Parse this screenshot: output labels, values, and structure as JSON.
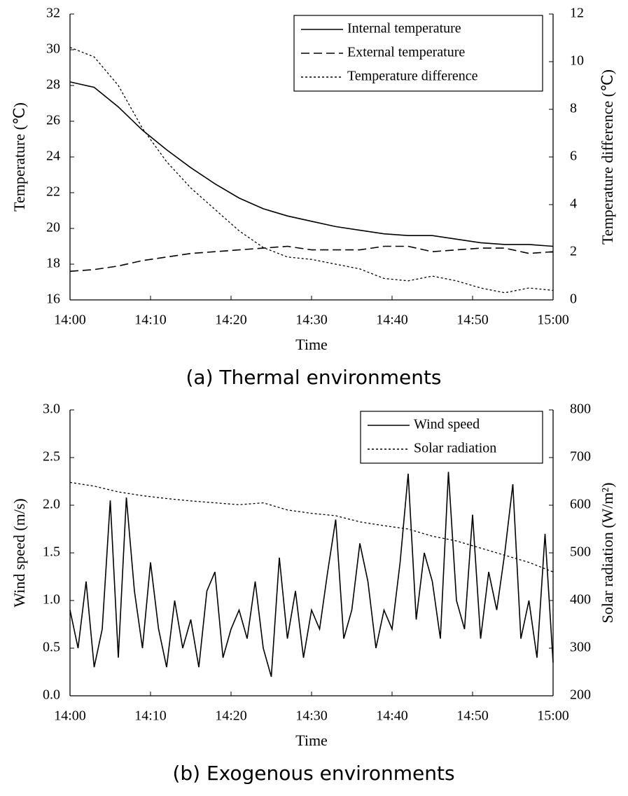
{
  "chart_data": [
    {
      "type": "line",
      "title": "(a) Thermal environments",
      "xlabel": "Time",
      "ylabel": "Temperature (℃)",
      "y2label": "Temperature difference (℃)",
      "x": [
        "14:00",
        "14:03",
        "14:06",
        "14:09",
        "14:12",
        "14:15",
        "14:18",
        "14:21",
        "14:24",
        "14:27",
        "14:30",
        "14:33",
        "14:36",
        "14:39",
        "14:42",
        "14:45",
        "14:48",
        "14:51",
        "14:54",
        "14:57",
        "15:00"
      ],
      "xlim": [
        "14:00",
        "15:00"
      ],
      "xticks": [
        "14:00",
        "14:10",
        "14:20",
        "14:30",
        "14:40",
        "14:50",
        "15:00"
      ],
      "ylim": [
        16,
        32
      ],
      "yticks": [
        16,
        18,
        20,
        22,
        24,
        26,
        28,
        30,
        32
      ],
      "y2lim": [
        0,
        12
      ],
      "y2ticks": [
        0,
        2,
        4,
        6,
        8,
        10,
        12
      ],
      "legend": "top-right",
      "series": [
        {
          "name": "Internal temperature",
          "color": "#000000",
          "dash": "solid",
          "values": [
            28.2,
            27.9,
            26.8,
            25.5,
            24.4,
            23.4,
            22.5,
            21.7,
            21.1,
            20.7,
            20.4,
            20.1,
            19.9,
            19.7,
            19.6,
            19.6,
            19.4,
            19.2,
            19.1,
            19.1,
            19.0
          ]
        },
        {
          "name": "External temperature",
          "color": "#000000",
          "dash": "dashed",
          "values": [
            17.6,
            17.7,
            17.9,
            18.2,
            18.4,
            18.6,
            18.7,
            18.8,
            18.9,
            19.0,
            18.8,
            18.8,
            18.8,
            19.0,
            19.0,
            18.7,
            18.8,
            18.9,
            18.9,
            18.6,
            18.7
          ]
        },
        {
          "name": "Temperature difference",
          "color": "#000000",
          "dash": "dotted",
          "axis": "y2",
          "values": [
            10.6,
            10.2,
            9.0,
            7.2,
            5.8,
            4.7,
            3.8,
            2.9,
            2.2,
            1.8,
            1.7,
            1.5,
            1.3,
            0.9,
            0.8,
            1.0,
            0.8,
            0.5,
            0.3,
            0.5,
            0.4
          ]
        }
      ]
    },
    {
      "type": "line",
      "title": "(b) Exogenous environments",
      "xlabel": "Time",
      "ylabel": "Wind speed (m/s)",
      "y2label": "Solar radiation (W/m²)",
      "xlim": [
        "14:00",
        "15:00"
      ],
      "xticks": [
        "14:00",
        "14:10",
        "14:20",
        "14:30",
        "14:40",
        "14:50",
        "15:00"
      ],
      "ylim": [
        0,
        3
      ],
      "yticks": [
        {
          "value": 0,
          "label": "0.0"
        },
        0.5,
        {
          "value": 1,
          "label": "1.0"
        },
        1.5,
        {
          "value": 2,
          "label": "2.0"
        },
        2.5,
        {
          "value": 3,
          "label": "3.0"
        }
      ],
      "y2lim": [
        200,
        800
      ],
      "y2ticks": [
        200,
        300,
        400,
        500,
        600,
        700,
        800
      ],
      "legend": "top-right",
      "series": [
        {
          "name": "Wind speed",
          "color": "#000000",
          "dash": "solid",
          "x": [
            "14:00",
            "14:01",
            "14:02",
            "14:03",
            "14:04",
            "14:05",
            "14:06",
            "14:07",
            "14:08",
            "14:09",
            "14:10",
            "14:11",
            "14:12",
            "14:13",
            "14:14",
            "14:15",
            "14:16",
            "14:17",
            "14:18",
            "14:19",
            "14:20",
            "14:21",
            "14:22",
            "14:23",
            "14:24",
            "14:25",
            "14:26",
            "14:27",
            "14:28",
            "14:29",
            "14:30",
            "14:31",
            "14:32",
            "14:33",
            "14:34",
            "14:35",
            "14:36",
            "14:37",
            "14:38",
            "14:39",
            "14:40",
            "14:41",
            "14:42",
            "14:43",
            "14:44",
            "14:45",
            "14:46",
            "14:47",
            "14:48",
            "14:49",
            "14:50",
            "14:51",
            "14:52",
            "14:53",
            "14:54",
            "14:55",
            "14:56",
            "14:57",
            "14:58",
            "14:59",
            "15:00"
          ],
          "values": [
            0.9,
            0.5,
            1.2,
            0.3,
            0.7,
            2.05,
            0.4,
            2.08,
            1.1,
            0.5,
            1.4,
            0.7,
            0.3,
            1.0,
            0.5,
            0.8,
            0.3,
            1.1,
            1.3,
            0.4,
            0.7,
            0.9,
            0.6,
            1.2,
            0.5,
            0.2,
            1.45,
            0.6,
            1.1,
            0.4,
            0.9,
            0.7,
            1.3,
            1.85,
            0.6,
            0.9,
            1.6,
            1.2,
            0.5,
            0.9,
            0.7,
            1.4,
            2.33,
            0.8,
            1.5,
            1.2,
            0.6,
            2.35,
            1.0,
            0.7,
            1.9,
            0.6,
            1.3,
            0.9,
            1.5,
            2.22,
            0.6,
            1.0,
            0.4,
            1.7,
            0.35
          ]
        },
        {
          "name": "Solar radiation",
          "color": "#000000",
          "dash": "dotted",
          "axis": "y2",
          "x": [
            "14:00",
            "14:03",
            "14:06",
            "14:09",
            "14:12",
            "14:15",
            "14:18",
            "14:21",
            "14:24",
            "14:27",
            "14:30",
            "14:33",
            "14:36",
            "14:39",
            "14:42",
            "14:45",
            "14:48",
            "14:51",
            "14:54",
            "14:57",
            "15:00"
          ],
          "values": [
            648,
            640,
            628,
            620,
            614,
            609,
            605,
            601,
            605,
            590,
            583,
            578,
            565,
            557,
            550,
            535,
            525,
            510,
            495,
            480,
            460
          ]
        }
      ]
    }
  ]
}
